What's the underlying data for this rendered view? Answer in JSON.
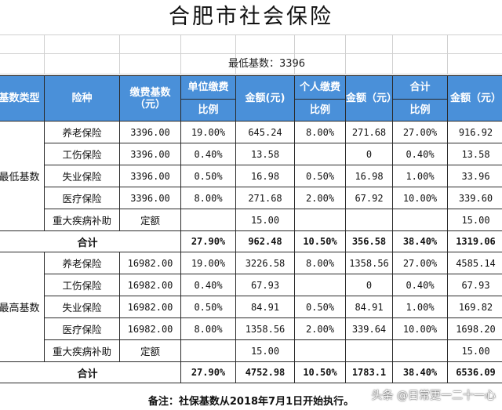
{
  "title": "合肥市社会保险",
  "min_base_label": "最低基数：3396",
  "headers": {
    "base_type": "基数类型",
    "insurance": "险种",
    "base": "缴费基数（元）",
    "unit_top": "单位缴费",
    "unit_ratio": "比例",
    "unit_amount": "金额(元)",
    "personal_top": "个人缴费",
    "personal_ratio": "比例",
    "personal_amount": "金额（元）",
    "total_top": "合计",
    "total_ratio": "比例",
    "total_amount": "金额（元）"
  },
  "groups": [
    {
      "name": "最低基数",
      "rows": [
        [
          "养老保险",
          "3396.00",
          "19.00%",
          "645.24",
          "8.00%",
          "271.68",
          "27.00%",
          "916.92"
        ],
        [
          "工伤保险",
          "3396.00",
          "0.40%",
          "13.58",
          "",
          "0",
          "0.40%",
          "13.58"
        ],
        [
          "失业保险",
          "3396.00",
          "0.50%",
          "16.98",
          "0.50%",
          "16.98",
          "1.00%",
          "33.96"
        ],
        [
          "医疗保险",
          "3396.00",
          "8.00%",
          "271.68",
          "2.00%",
          "67.92",
          "10.00%",
          "339.60"
        ],
        [
          "重大疾病补助",
          "定额",
          "",
          "15.00",
          "",
          "",
          "",
          "15.00"
        ]
      ],
      "sum": [
        "合计",
        "27.90%",
        "962.48",
        "10.50%",
        "356.58",
        "38.40%",
        "1319.06"
      ]
    },
    {
      "name": "最高基数",
      "rows": [
        [
          "养老保险",
          "16982.00",
          "19.00%",
          "3226.58",
          "8.00%",
          "1358.56",
          "27.00%",
          "4585.14"
        ],
        [
          "工伤保险",
          "16982.00",
          "0.40%",
          "67.93",
          "",
          "0",
          "0.40%",
          "67.93"
        ],
        [
          "失业保险",
          "16982.00",
          "0.50%",
          "84.91",
          "0.50%",
          "84.91",
          "1.00%",
          "169.82"
        ],
        [
          "医疗保险",
          "16982.00",
          "8.00%",
          "1358.56",
          "2.00%",
          "339.64",
          "10.00%",
          "1698.20"
        ],
        [
          "重大疾病补助",
          "定额",
          "",
          "15.00",
          "",
          "",
          "",
          "15.00"
        ]
      ],
      "sum": [
        "合计",
        "27.90%",
        "4752.98",
        "10.50%",
        "1783.1",
        "38.40%",
        "6536.09"
      ]
    }
  ],
  "note": "备注：社保基数从2018年7月1日开始执行。",
  "watermark": "头条 @日常更一二十一心"
}
